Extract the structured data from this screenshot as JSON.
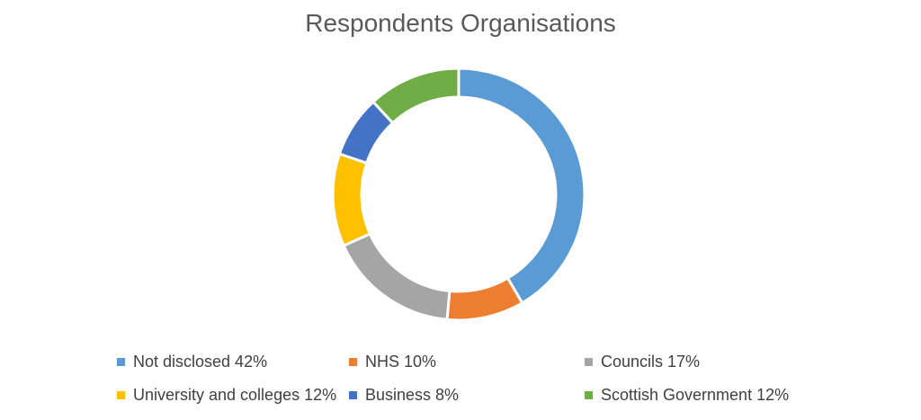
{
  "chart_data": {
    "type": "pie",
    "style": "donut",
    "title": "Respondents Organisations",
    "legend_position": "bottom",
    "slices": [
      {
        "label": "Not disclosed",
        "value": 42,
        "color": "#5B9BD5",
        "legend_text": "Not disclosed 42%"
      },
      {
        "label": "NHS",
        "value": 10,
        "color": "#ED7D31",
        "legend_text": "NHS 10%"
      },
      {
        "label": "Councils",
        "value": 17,
        "color": "#A5A5A5",
        "legend_text": "Councils 17%"
      },
      {
        "label": "University and colleges",
        "value": 12,
        "color": "#FFC000",
        "legend_text": "University and colleges 12%"
      },
      {
        "label": "Business",
        "value": 8,
        "color": "#4472C4",
        "legend_text": "Business 8%"
      },
      {
        "label": "Scottish Government",
        "value": 12,
        "color": "#70AD47",
        "legend_text": "Scottish Government 12%"
      }
    ]
  }
}
